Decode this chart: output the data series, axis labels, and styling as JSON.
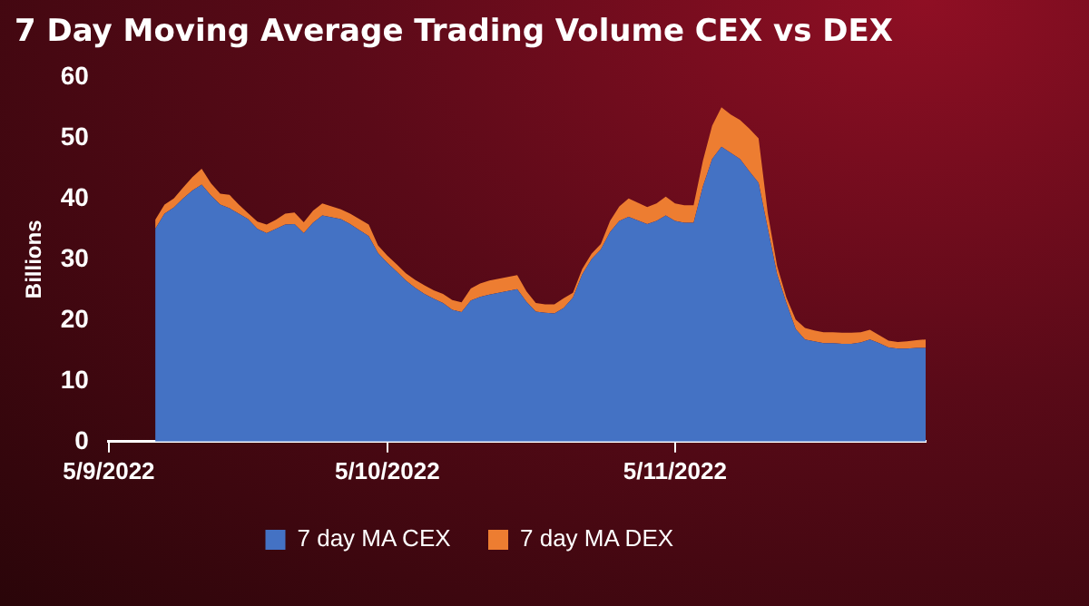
{
  "chart_data": {
    "type": "area",
    "title": "7 Day Moving Average Trading Volume CEX vs DEX",
    "ylabel": "Billions",
    "categories": [
      "5/9/2022",
      null,
      null,
      null,
      null,
      null,
      null,
      null,
      null,
      null,
      null,
      null,
      null,
      null,
      null,
      null,
      null,
      null,
      null,
      null,
      null,
      null,
      null,
      null,
      null,
      null,
      null,
      null,
      null,
      null,
      "5/10/2022",
      null,
      null,
      null,
      null,
      null,
      null,
      null,
      null,
      null,
      null,
      null,
      null,
      null,
      null,
      null,
      null,
      null,
      null,
      null,
      null,
      null,
      null,
      null,
      null,
      null,
      null,
      null,
      null,
      null,
      null,
      "5/11/2022",
      null,
      null,
      null,
      null,
      null,
      null,
      null,
      null,
      null,
      null,
      null,
      null,
      null,
      null,
      null,
      null,
      null,
      null,
      null,
      null,
      null,
      null,
      null,
      null,
      null,
      null,
      null
    ],
    "series": [
      {
        "name": "7 day MA CEX",
        "color": "#4472c4",
        "values": [
          null,
          null,
          null,
          null,
          null,
          35.0,
          37.5,
          38.5,
          40.0,
          41.3,
          42.3,
          40.5,
          39.0,
          38.4,
          37.5,
          36.6,
          35.0,
          34.3,
          35.0,
          35.7,
          35.8,
          34.3,
          36.0,
          37.2,
          36.9,
          36.6,
          35.8,
          34.8,
          33.8,
          31.0,
          29.4,
          28.0,
          26.5,
          25.3,
          24.3,
          23.5,
          22.8,
          21.7,
          21.3,
          23.2,
          23.8,
          24.2,
          24.5,
          24.8,
          25.1,
          23.0,
          21.4,
          21.2,
          21.1,
          22.0,
          23.7,
          27.5,
          30.0,
          31.6,
          34.5,
          36.3,
          37.0,
          36.4,
          35.8,
          36.3,
          37.2,
          36.3,
          36.0,
          36.0,
          42.0,
          46.5,
          48.5,
          47.5,
          46.5,
          44.5,
          42.6,
          35.0,
          27.5,
          22.8,
          18.5,
          16.8,
          16.5,
          16.2,
          16.2,
          16.1,
          16.1,
          16.3,
          16.8,
          16.2,
          15.5,
          15.3,
          15.3,
          15.4,
          15.4
        ]
      },
      {
        "name": "7 day MA DEX",
        "color": "#ed7d31",
        "values": [
          null,
          null,
          null,
          null,
          null,
          1.5,
          1.5,
          1.5,
          1.8,
          2.2,
          2.6,
          2.0,
          1.8,
          2.2,
          1.5,
          1.0,
          1.2,
          1.4,
          1.5,
          1.8,
          1.9,
          1.8,
          2.0,
          2.0,
          1.8,
          1.6,
          1.7,
          1.8,
          1.9,
          1.3,
          1.2,
          1.2,
          1.2,
          1.3,
          1.4,
          1.4,
          1.5,
          1.6,
          1.6,
          2.0,
          2.2,
          2.3,
          2.3,
          2.3,
          2.3,
          1.7,
          1.4,
          1.4,
          1.5,
          1.6,
          0.8,
          0.9,
          0.9,
          0.9,
          1.8,
          2.4,
          3.0,
          2.9,
          2.8,
          2.9,
          3.1,
          2.9,
          2.9,
          2.9,
          4.2,
          5.5,
          6.5,
          6.3,
          6.4,
          7.0,
          7.3,
          2.5,
          1.4,
          0.9,
          1.6,
          1.9,
          1.8,
          1.8,
          1.8,
          1.8,
          1.8,
          1.7,
          1.6,
          1.3,
          1.1,
          1.1,
          1.2,
          1.3,
          1.4
        ]
      }
    ],
    "stacked": true,
    "ylim": [
      0,
      60
    ],
    "yticks": [
      0,
      10,
      20,
      30,
      40,
      50,
      60
    ],
    "legend": "bottom"
  }
}
